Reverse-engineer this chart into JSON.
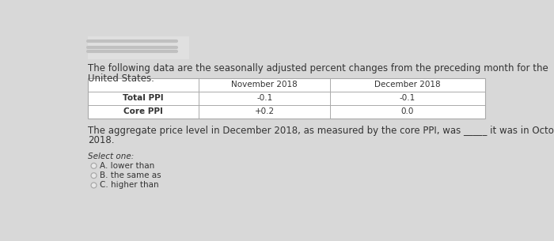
{
  "bg_color": "#d8d8d8",
  "content_bg": "#e8e8e8",
  "intro_text_line1": "The following data are the seasonally adjusted percent changes from the preceding month for the",
  "intro_text_line2": "United States.",
  "table_headers": [
    "",
    "November 2018",
    "December 2018"
  ],
  "table_rows": [
    [
      "Total PPI",
      "-0.1",
      "-0.1"
    ],
    [
      "Core PPI",
      "+0.2",
      "0.0"
    ]
  ],
  "question_text_line1": "The aggregate price level in December 2018, as measured by the core PPI, was _____ it was in October",
  "question_text_line2": "2018.",
  "select_label": "Select one:",
  "options": [
    "A. lower than",
    "B. the same as",
    "C. higher than"
  ],
  "redacted_box_color": "#d0d0d0",
  "table_border_color": "#aaaaaa",
  "text_color": "#333333",
  "font_size": 8.5,
  "small_font_size": 7.5
}
